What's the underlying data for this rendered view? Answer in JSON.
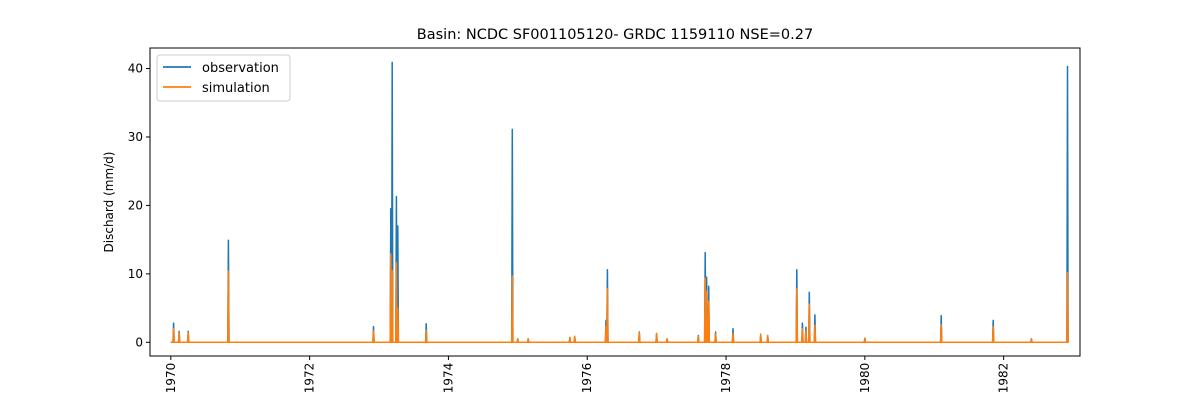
{
  "chart_data": {
    "type": "line",
    "title": "Basin: NCDC SF001105120- GRDC 1159110 NSE=0.27",
    "xlabel": "",
    "ylabel": "Dischard (mm/d)",
    "x_tick_labels": [
      "1970",
      "1972",
      "1974",
      "1976",
      "1978",
      "1980",
      "1982"
    ],
    "x_tick_years": [
      1970,
      1972,
      1974,
      1976,
      1978,
      1980,
      1982
    ],
    "y_ticks": [
      0,
      10,
      20,
      30,
      40
    ],
    "y_tick_labels": [
      "0",
      "10",
      "20",
      "30",
      "40"
    ],
    "xlim": [
      1969.7,
      1983.1
    ],
    "ylim": [
      -2.0,
      43.0
    ],
    "grid": false,
    "legend_position": "top-left",
    "series": [
      {
        "name": "observation",
        "color": "#1f77b4",
        "peaks": [
          [
            1970.04,
            2.8
          ],
          [
            1970.12,
            1.6
          ],
          [
            1970.25,
            1.6
          ],
          [
            1970.83,
            14.9
          ],
          [
            1972.92,
            2.3
          ],
          [
            1973.17,
            19.5
          ],
          [
            1973.19,
            40.9
          ],
          [
            1973.25,
            21.3
          ],
          [
            1973.27,
            17.0
          ],
          [
            1973.68,
            2.7
          ],
          [
            1974.92,
            31.1
          ],
          [
            1975.0,
            0.5
          ],
          [
            1975.15,
            0.5
          ],
          [
            1975.75,
            0.7
          ],
          [
            1975.82,
            0.8
          ],
          [
            1976.27,
            3.2
          ],
          [
            1976.29,
            10.6
          ],
          [
            1976.75,
            1.5
          ],
          [
            1977.0,
            1.2
          ],
          [
            1977.15,
            0.5
          ],
          [
            1977.6,
            1.0
          ],
          [
            1977.7,
            13.1
          ],
          [
            1977.72,
            9.5
          ],
          [
            1977.75,
            8.2
          ],
          [
            1977.85,
            1.5
          ],
          [
            1978.1,
            2.0
          ],
          [
            1978.5,
            1.0
          ],
          [
            1978.6,
            1.0
          ],
          [
            1979.02,
            10.6
          ],
          [
            1979.1,
            2.8
          ],
          [
            1979.15,
            2.2
          ],
          [
            1979.2,
            7.3
          ],
          [
            1979.28,
            4.0
          ],
          [
            1980.0,
            0.6
          ],
          [
            1981.1,
            3.9
          ],
          [
            1981.85,
            3.2
          ],
          [
            1982.4,
            0.5
          ],
          [
            1982.92,
            40.3
          ]
        ]
      },
      {
        "name": "simulation",
        "color": "#ff7f0e",
        "peaks": [
          [
            1970.04,
            2.0
          ],
          [
            1970.12,
            1.4
          ],
          [
            1970.25,
            1.4
          ],
          [
            1970.83,
            10.4
          ],
          [
            1972.92,
            1.7
          ],
          [
            1973.17,
            12.9
          ],
          [
            1973.19,
            10.5
          ],
          [
            1973.25,
            11.6
          ],
          [
            1973.27,
            5.0
          ],
          [
            1973.68,
            1.8
          ],
          [
            1974.92,
            9.7
          ],
          [
            1975.0,
            0.5
          ],
          [
            1975.15,
            0.5
          ],
          [
            1975.75,
            0.7
          ],
          [
            1975.82,
            0.9
          ],
          [
            1976.27,
            2.3
          ],
          [
            1976.29,
            7.8
          ],
          [
            1976.75,
            1.4
          ],
          [
            1977.0,
            1.3
          ],
          [
            1977.15,
            0.5
          ],
          [
            1977.6,
            0.9
          ],
          [
            1977.7,
            9.4
          ],
          [
            1977.72,
            7.5
          ],
          [
            1977.75,
            6.0
          ],
          [
            1977.85,
            1.3
          ],
          [
            1978.1,
            1.3
          ],
          [
            1978.5,
            1.2
          ],
          [
            1978.6,
            1.0
          ],
          [
            1979.02,
            7.8
          ],
          [
            1979.1,
            2.0
          ],
          [
            1979.15,
            1.7
          ],
          [
            1979.2,
            5.6
          ],
          [
            1979.28,
            2.5
          ],
          [
            1980.0,
            0.6
          ],
          [
            1981.1,
            2.6
          ],
          [
            1981.85,
            2.3
          ],
          [
            1982.4,
            0.5
          ],
          [
            1982.92,
            10.2
          ]
        ]
      }
    ]
  }
}
